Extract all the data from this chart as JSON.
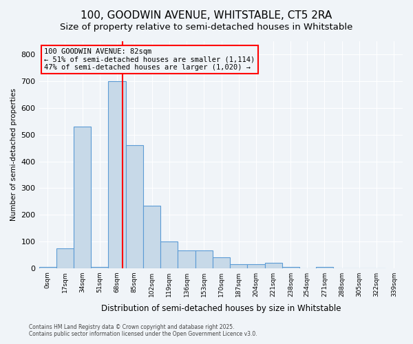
{
  "title1": "100, GOODWIN AVENUE, WHITSTABLE, CT5 2RA",
  "title2": "Size of property relative to semi-detached houses in Whitstable",
  "xlabel": "Distribution of semi-detached houses by size in Whitstable",
  "ylabel": "Number of semi-detached properties",
  "bin_labels": [
    "0sqm",
    "17sqm",
    "34sqm",
    "51sqm",
    "68sqm",
    "85sqm",
    "102sqm",
    "119sqm",
    "136sqm",
    "153sqm",
    "170sqm",
    "187sqm",
    "204sqm",
    "221sqm",
    "238sqm",
    "254sqm",
    "271sqm",
    "288sqm",
    "305sqm",
    "322sqm",
    "339sqm"
  ],
  "bin_edges": [
    0,
    17,
    34,
    51,
    68,
    85,
    102,
    119,
    136,
    153,
    170,
    187,
    204,
    221,
    238,
    254,
    271,
    288,
    305,
    322,
    339
  ],
  "bar_heights": [
    5,
    75,
    530,
    5,
    700,
    460,
    235,
    100,
    65,
    65,
    40,
    15,
    15,
    20,
    5,
    0,
    5,
    0,
    0,
    0
  ],
  "bar_color": "#c7d9e8",
  "bar_edge_color": "#5b9bd5",
  "vline_x": 82,
  "vline_color": "red",
  "annotation_title": "100 GOODWIN AVENUE: 82sqm",
  "annotation_line1": "← 51% of semi-detached houses are smaller (1,114)",
  "annotation_line2": "47% of semi-detached houses are larger (1,020) →",
  "annotation_box_color": "red",
  "ylim": [
    0,
    850
  ],
  "yticks": [
    0,
    100,
    200,
    300,
    400,
    500,
    600,
    700,
    800
  ],
  "footnote1": "Contains HM Land Registry data © Crown copyright and database right 2025.",
  "footnote2": "Contains public sector information licensed under the Open Government Licence v3.0.",
  "bg_color": "#f0f4f8",
  "grid_color": "#ffffff",
  "title_fontsize": 11,
  "subtitle_fontsize": 9.5
}
